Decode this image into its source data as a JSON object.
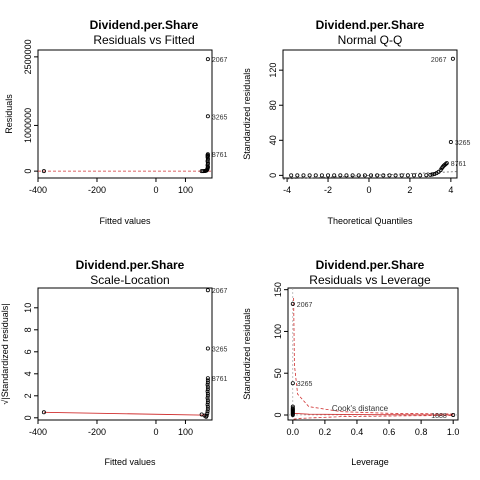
{
  "chart_data": [
    {
      "type": "scatter",
      "title": "Dividend.per.Share",
      "subtitle": "Residuals vs Fitted",
      "xlabel": "Fitted values",
      "ylabel": "Residuals",
      "xlim": [
        -400,
        190
      ],
      "ylim": [
        -150000,
        2650000
      ],
      "xticks": [
        -400,
        -200,
        0,
        100
      ],
      "xtick_labels": [
        "-400",
        "-200",
        "0",
        "100"
      ],
      "yticks": [
        0,
        1000000,
        2500000
      ],
      "ytick_labels": [
        "0",
        "1000000",
        "2500000"
      ],
      "series": [
        {
          "x": [
            -380,
            155,
            160,
            165,
            168,
            170,
            172,
            174,
            175,
            176,
            176,
            175,
            176,
            176,
            175,
            176,
            176,
            175,
            176,
            176,
            175,
            176,
            176,
            176
          ],
          "y": [
            0,
            0,
            0,
            2000,
            5000,
            10000,
            20000,
            40000,
            60000,
            80000,
            100000,
            130000,
            160000,
            190000,
            220000,
            250000,
            280000,
            310000,
            330000,
            340000,
            350000,
            370000,
            1200000,
            2450000
          ]
        }
      ],
      "annotations": [
        {
          "label": "2067",
          "x": 176,
          "y": 2450000
        },
        {
          "label": "3265",
          "x": 176,
          "y": 1200000
        },
        {
          "label": "8761",
          "x": 176,
          "y": 370000
        }
      ],
      "hline": 0
    },
    {
      "type": "scatter",
      "title": "Dividend.per.Share",
      "subtitle": "Normal Q-Q",
      "xlabel": "Theoretical Quantiles",
      "ylabel": "Standardized residuals",
      "xlim": [
        -4.2,
        4.3
      ],
      "ylim": [
        -3,
        143
      ],
      "xticks": [
        -4,
        -2,
        0,
        2,
        4
      ],
      "xtick_labels": [
        "-4",
        "-2",
        "0",
        "2",
        "4"
      ],
      "yticks": [
        0,
        40,
        80,
        120
      ],
      "ytick_labels": [
        "0",
        "40",
        "80",
        "120"
      ],
      "series": [
        {
          "x": [
            -3.8,
            -3.5,
            -3.2,
            -2.9,
            -2.6,
            -2.3,
            -2.0,
            -1.7,
            -1.4,
            -1.1,
            -0.8,
            -0.5,
            -0.2,
            0.1,
            0.4,
            0.7,
            1.0,
            1.3,
            1.6,
            1.9,
            2.2,
            2.5,
            2.8,
            3.0,
            3.1,
            3.2,
            3.3,
            3.4,
            3.5,
            3.55,
            3.6,
            3.65,
            3.7,
            3.75,
            3.8,
            4.0,
            4.1
          ],
          "y": [
            0,
            0,
            0,
            0,
            0,
            0,
            0,
            0,
            0,
            0,
            0,
            0,
            0,
            0,
            0,
            0,
            0,
            0,
            0,
            0,
            0,
            0,
            0.2,
            0.5,
            1,
            1.5,
            2.5,
            4,
            6,
            8,
            9.5,
            11,
            12,
            13,
            14,
            38,
            133
          ]
        }
      ],
      "annotations": [
        {
          "label": "2067",
          "x": 4.1,
          "y": 133
        },
        {
          "label": "3265",
          "x": 4.0,
          "y": 38
        },
        {
          "label": "8761",
          "x": 3.8,
          "y": 14
        }
      ],
      "refline": {
        "intercept": 0,
        "slope": 1
      }
    },
    {
      "type": "scatter",
      "title": "Dividend.per.Share",
      "subtitle": "Scale-Location",
      "xlabel": "Fitted values",
      "ylabel": "√|Standardized residuals|",
      "xlim": [
        -400,
        190
      ],
      "ylim": [
        -0.2,
        11.8
      ],
      "xticks": [
        -400,
        -200,
        0,
        100
      ],
      "xtick_labels": [
        "-400",
        "-200",
        "0",
        "100"
      ],
      "yticks": [
        0,
        2,
        4,
        6,
        8,
        10
      ],
      "ytick_labels": [
        "0",
        "2",
        "4",
        "6",
        "8",
        "10"
      ],
      "series": [
        {
          "x": [
            -380,
            155,
            165,
            170,
            172,
            174,
            175,
            176,
            176,
            175,
            176,
            176,
            175,
            176,
            176,
            175,
            176,
            176,
            175,
            176,
            176,
            176,
            176,
            176
          ],
          "y": [
            0.5,
            0.3,
            0.2,
            0.1,
            0.2,
            0.4,
            0.6,
            0.8,
            1.0,
            1.2,
            1.4,
            1.6,
            1.8,
            2.0,
            2.2,
            2.4,
            2.6,
            2.8,
            3.0,
            3.2,
            3.4,
            3.6,
            6.3,
            11.6
          ]
        }
      ],
      "annotations": [
        {
          "label": "2067",
          "x": 176,
          "y": 11.6
        },
        {
          "label": "3265",
          "x": 176,
          "y": 6.3
        },
        {
          "label": "8761",
          "x": 176,
          "y": 3.6
        }
      ]
    },
    {
      "type": "scatter",
      "title": "Dividend.per.Share",
      "subtitle": "Residuals vs Leverage",
      "xlabel": "Leverage",
      "ylabel": "Standardized residuals",
      "xlim": [
        -0.03,
        1.03
      ],
      "ylim": [
        -6,
        152
      ],
      "xticks": [
        0,
        0.2,
        0.4,
        0.6,
        0.8,
        1.0
      ],
      "xtick_labels": [
        "0.0",
        "0.2",
        "0.4",
        "0.6",
        "0.8",
        "1.0"
      ],
      "yticks": [
        0,
        50,
        100,
        150
      ],
      "ytick_labels": [
        "0",
        "50",
        "100",
        "150"
      ],
      "series": [
        {
          "x": [
            0.0,
            0.0,
            0.0,
            0.0,
            0.0,
            0.0,
            0.0,
            0.0,
            0.0,
            0.0,
            0.0,
            0.0,
            1.0
          ],
          "y": [
            0,
            1,
            2,
            3,
            4,
            5,
            6,
            7,
            8,
            10,
            38,
            133,
            0
          ]
        }
      ],
      "annotations": [
        {
          "label": "2067",
          "x": 0.0,
          "y": 133
        },
        {
          "label": "3265",
          "x": 0.0,
          "y": 38
        },
        {
          "label": "1888",
          "x": 1.0,
          "y": 0
        }
      ],
      "legend_text": "Cook's distance"
    }
  ]
}
